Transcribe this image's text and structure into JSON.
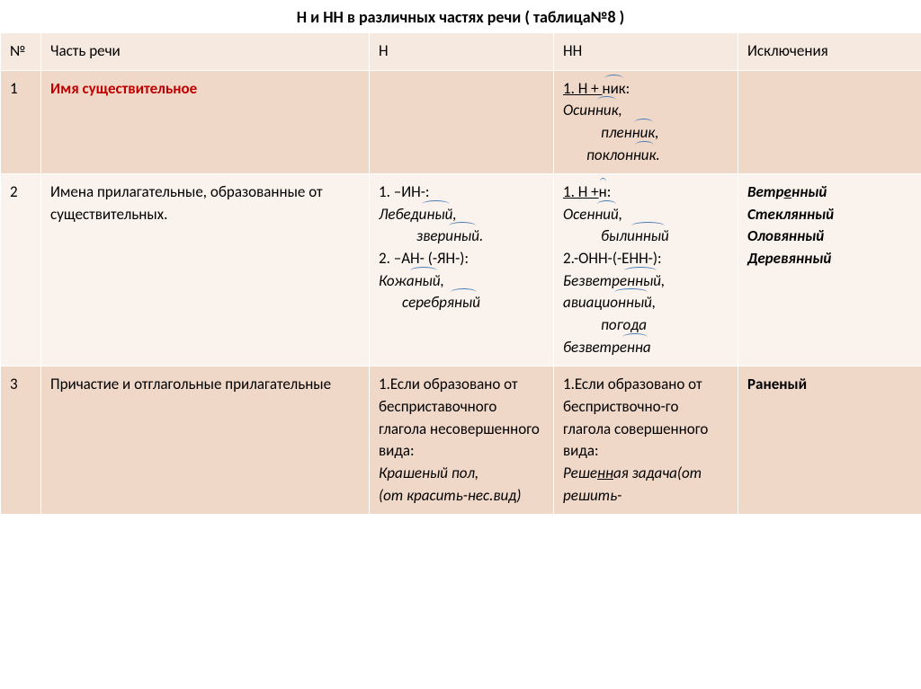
{
  "title": "Н и НН в различных частях речи ( таблица№8 )",
  "headers": {
    "num": "№",
    "part": "Часть речи",
    "n": "Н",
    "nn": "НН",
    "exc": "Исключения"
  },
  "row1": {
    "num": "1",
    "part": "Имя существительное",
    "nn_line1a": "1.    Н + ",
    "nn_line1b": "ник",
    "nn_line1c": ":",
    "nn_ex1": "Осин",
    "nn_ex1s": "ник",
    "nn_ex2": "плен",
    "nn_ex2s": "ник",
    "nn_ex3": "поклон",
    "nn_ex3s": "ник",
    "nn_dot": "."
  },
  "row2": {
    "num": "2",
    "part": "Имена прилагательные, образованные от существительных.",
    "n_l1": "1.   –ИН-:",
    "n_ex1a": "Лебед",
    "n_ex1s": "иный",
    "n_ex2a": "звер",
    "n_ex2s": "иный",
    "n_l2": "2. –АН- (-ЯН-):",
    "n_ex3a": "Кож",
    "n_ex3s": "аный",
    "n_ex4a": "серебр",
    "n_ex4s": "яный",
    "nn_l1a": "1.    Н +",
    "nn_l1b": "н",
    "nn_l1c": ":",
    "nn_ex1a": "Осен",
    "nn_ex1s": "ний",
    "nn_ex2a": "был",
    "nn_ex2s": "инный",
    "nn_l2": "2.-ОНН-(-ЕНН-):",
    "nn_ex3a": "Безветр",
    "nn_ex3s": "енный",
    "nn_ex4a": "авиаци",
    "nn_ex4s": "онный",
    "nn_ex5": "погода",
    "nn_ex6a": "безветр",
    "nn_ex6s": "енна",
    "exc_w1a": "Ветр",
    "exc_w1b": "е",
    "exc_w1c": "нный",
    "exc_w2": "Стеклянный",
    "exc_w3": "Оловянный",
    "exc_w4": "Деревянный"
  },
  "row3": {
    "num": "3",
    "part": "Причастие и отглагольные прилагательные",
    "n_txt1": "1.Если образовано от бесприставочного глагола несовершенного вида:",
    "n_ex1": "Крашеный пол,",
    "n_ex2": "(от красить-нес.вид)",
    "nn_txt1": "1.Если образовано от бесприствочно-го глагола совершенного вида:",
    "nn_ex1a": "Реше",
    "nn_ex1b": "нн",
    "nn_ex1c": "ая задача(от решить-",
    "exc_w1": "Раненый",
    "comma": ",",
    "dot": "."
  },
  "colors": {
    "header_bg": "#f6e9e0",
    "odd_bg": "#f0d8c9",
    "even_bg": "#f9f2ed",
    "red": "#c00000",
    "arc": "#4a7db5",
    "border": "#ffffff"
  },
  "fontsize": {
    "title": 18,
    "body": 17
  }
}
